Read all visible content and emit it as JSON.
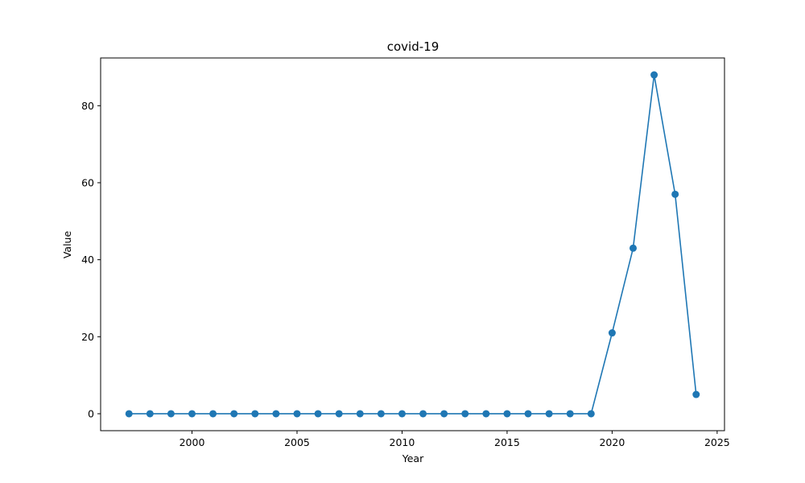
{
  "chart_data": {
    "type": "line",
    "title": "covid-19",
    "xlabel": "Year",
    "ylabel": "Value",
    "x": [
      1997,
      1998,
      1999,
      2000,
      2001,
      2002,
      2003,
      2004,
      2005,
      2006,
      2007,
      2008,
      2009,
      2010,
      2011,
      2012,
      2013,
      2014,
      2015,
      2016,
      2017,
      2018,
      2019,
      2020,
      2021,
      2022,
      2023,
      2024
    ],
    "series": [
      {
        "values": [
          0,
          0,
          0,
          0,
          0,
          0,
          0,
          0,
          0,
          0,
          0,
          0,
          0,
          0,
          0,
          0,
          0,
          0,
          0,
          0,
          0,
          0,
          0,
          21,
          43,
          88,
          57,
          5
        ],
        "color": "#1f77b4",
        "marker": "circle"
      }
    ],
    "xticks": [
      2000,
      2005,
      2010,
      2015,
      2020,
      2025
    ],
    "yticks": [
      0,
      20,
      40,
      60,
      80
    ],
    "xlim": [
      1995.65,
      2025.35
    ],
    "ylim": [
      -4.4,
      92.4
    ],
    "grid": false,
    "legend": false
  }
}
